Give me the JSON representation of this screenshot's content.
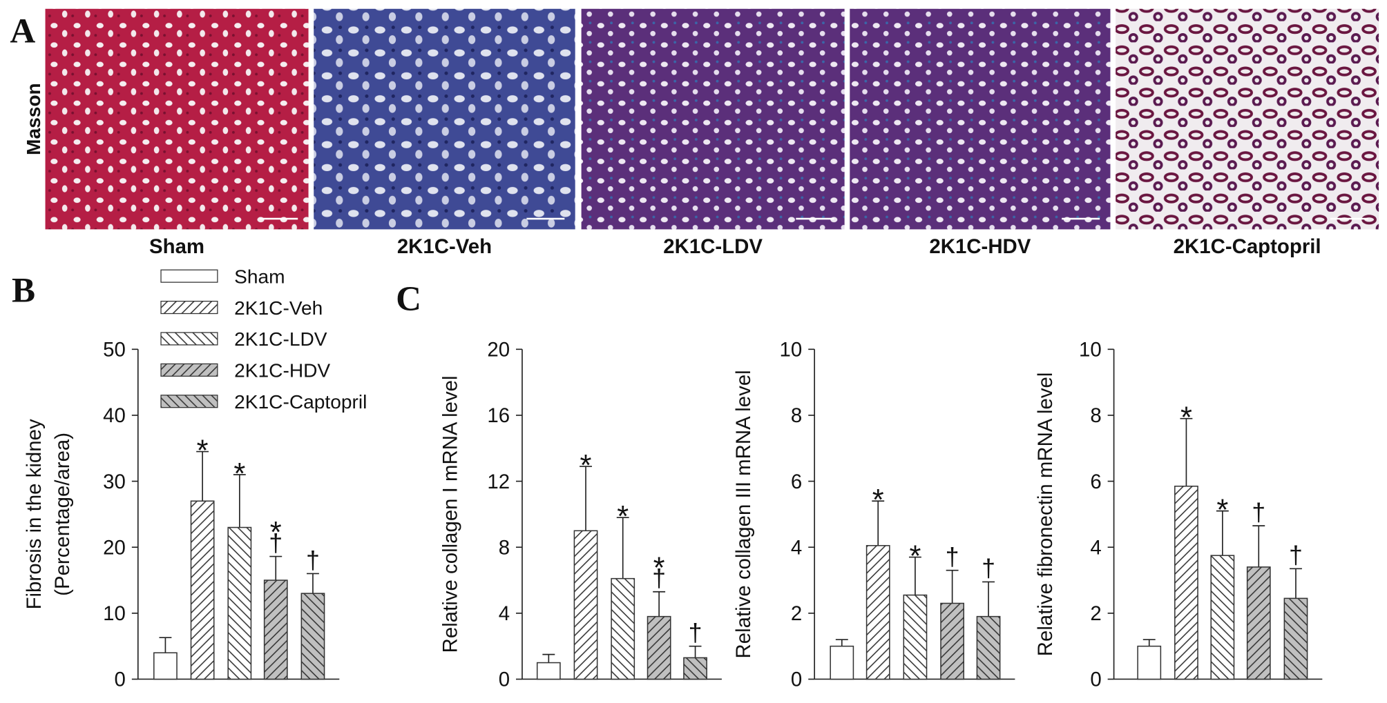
{
  "panel_a": {
    "label": "A",
    "row_label": "Masson",
    "captions": [
      "Sham",
      "2K1C-Veh",
      "2K1C-LDV",
      "2K1C-HDV",
      "2K1C-Captopril"
    ]
  },
  "chart_data": [
    {
      "type": "bar",
      "panel": "B",
      "ylabel": [
        "Fibrosis in the kidney",
        "(Percentage/area)"
      ],
      "categories": [
        "Sham",
        "2K1C-Veh",
        "2K1C-LDV",
        "2K1C-HDV",
        "2K1C-Captopril"
      ],
      "fills": [
        "#ffffff",
        "#ffffff",
        "#ffffff",
        "#c0c0c0",
        "#c0c0c0"
      ],
      "hatch": [
        null,
        "/",
        "\\",
        "/",
        "\\"
      ],
      "values": [
        4,
        27,
        23,
        15,
        13
      ],
      "errors": [
        2.3,
        7.5,
        8,
        3.6,
        3
      ],
      "annotations": [
        null,
        [
          "*"
        ],
        [
          "*"
        ],
        [
          "*",
          "†"
        ],
        [
          "†"
        ]
      ],
      "ylim": [
        0,
        50
      ],
      "yticks": [
        0,
        10,
        20,
        30,
        40,
        50
      ]
    },
    {
      "type": "bar",
      "panel": "C",
      "ylabel": [
        "Relative collagen I mRNA level"
      ],
      "values": [
        1.0,
        9.0,
        6.1,
        3.8,
        1.3
      ],
      "errors": [
        0.5,
        3.9,
        3.7,
        1.5,
        0.7
      ],
      "annotations": [
        null,
        [
          "*"
        ],
        [
          "*"
        ],
        [
          "*",
          "†"
        ],
        [
          "†"
        ]
      ],
      "ylim": [
        0,
        20
      ],
      "yticks": [
        0,
        4,
        8,
        12,
        16,
        20
      ]
    },
    {
      "type": "bar",
      "ylabel": [
        "Relative collagen III mRNA level"
      ],
      "values": [
        1.0,
        4.05,
        2.55,
        2.3,
        1.9
      ],
      "errors": [
        0.2,
        1.35,
        1.15,
        1.0,
        1.05
      ],
      "annotations": [
        null,
        [
          "*"
        ],
        [
          "*"
        ],
        [
          "†"
        ],
        [
          "†"
        ]
      ],
      "ylim": [
        0,
        10
      ],
      "yticks": [
        0,
        2,
        4,
        6,
        8,
        10
      ]
    },
    {
      "type": "bar",
      "ylabel": [
        "Relative fibronectin mRNA level"
      ],
      "values": [
        1.0,
        5.85,
        3.75,
        3.4,
        2.45
      ],
      "errors": [
        0.2,
        2.05,
        1.35,
        1.25,
        0.9
      ],
      "annotations": [
        null,
        [
          "*"
        ],
        [
          "*"
        ],
        [
          "†"
        ],
        [
          "†"
        ]
      ],
      "ylim": [
        0,
        10
      ],
      "yticks": [
        0,
        2,
        4,
        6,
        8,
        10
      ]
    }
  ]
}
